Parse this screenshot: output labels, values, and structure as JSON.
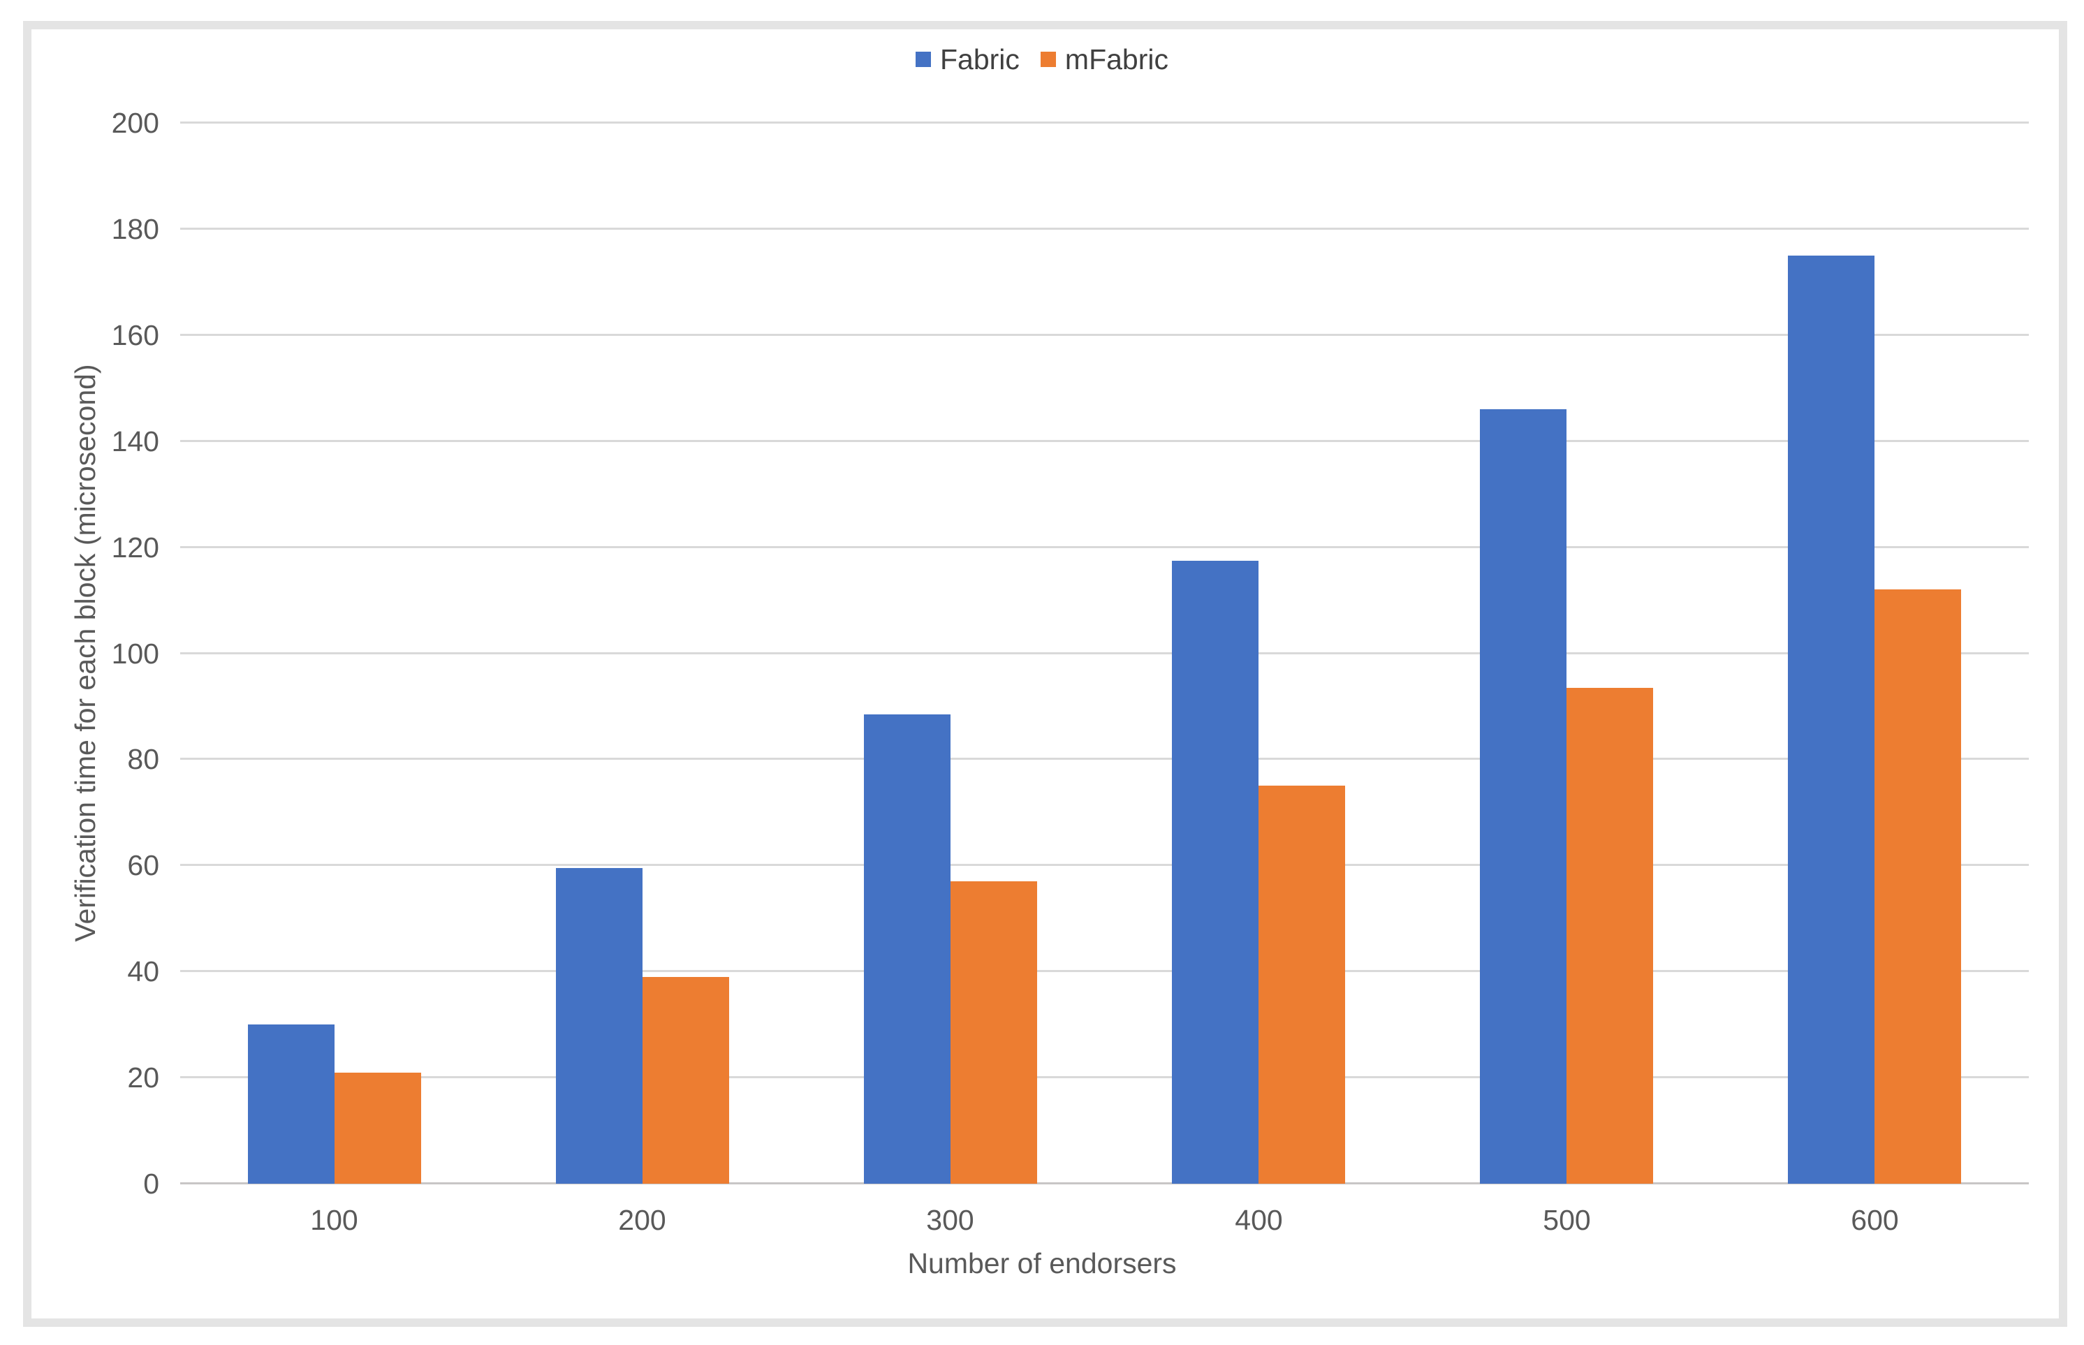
{
  "chart_data": {
    "type": "bar",
    "title": "",
    "categories": [
      "100",
      "200",
      "300",
      "400",
      "500",
      "600"
    ],
    "series": [
      {
        "name": "Fabric",
        "color": "#4472C4",
        "values": [
          30,
          59.5,
          88.5,
          117.5,
          146,
          175
        ]
      },
      {
        "name": "mFabric",
        "color": "#ED7D31",
        "values": [
          21,
          39,
          57,
          75,
          93.5,
          112
        ]
      }
    ],
    "xlabel": "Number of endorsers",
    "ylabel": "Verification time for each block (microsecond)",
    "ylim": [
      0,
      200
    ],
    "ytick_step": 20,
    "ytick_labels": [
      "0",
      "20",
      "40",
      "60",
      "80",
      "100",
      "120",
      "140",
      "160",
      "180",
      "200"
    ],
    "grid": true,
    "legend_position": "top-center",
    "styles": {
      "gridline_color": "#D9D9D9",
      "axis_line_color": "#C8C6C6",
      "tick_label_color": "#595959",
      "axis_title_color": "#595959",
      "legend_text_color": "#404040",
      "frame_border_color": "#E4E4E4",
      "background": "#FFFFFF"
    }
  }
}
